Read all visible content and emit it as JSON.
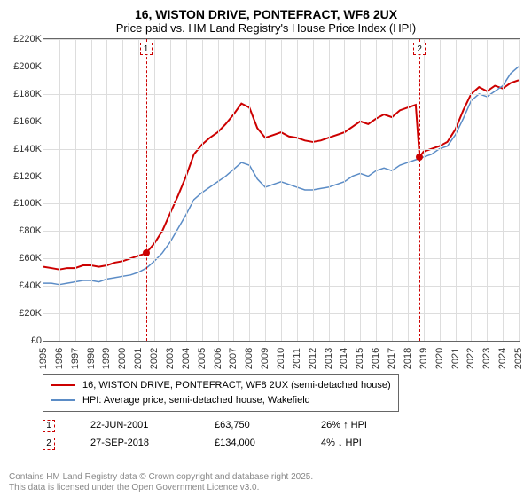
{
  "title": {
    "line1": "16, WISTON DRIVE, PONTEFRACT, WF8 2UX",
    "line2": "Price paid vs. HM Land Registry's House Price Index (HPI)"
  },
  "chart": {
    "type": "line",
    "background_color": "#ffffff",
    "grid_color": "#dddddd",
    "border_color": "#666666",
    "y_axis": {
      "min": 0,
      "max": 220000,
      "step": 20000,
      "labels": [
        "£0",
        "£20K",
        "£40K",
        "£60K",
        "£80K",
        "£100K",
        "£120K",
        "£140K",
        "£160K",
        "£180K",
        "£200K",
        "£220K"
      ],
      "label_fontsize": 11
    },
    "x_axis": {
      "min": 1995,
      "max": 2025,
      "step": 1,
      "labels": [
        "1995",
        "1996",
        "1997",
        "1998",
        "1999",
        "2000",
        "2001",
        "2002",
        "2003",
        "2004",
        "2005",
        "2006",
        "2007",
        "2008",
        "2009",
        "2010",
        "2011",
        "2012",
        "2013",
        "2014",
        "2015",
        "2016",
        "2017",
        "2018",
        "2019",
        "2020",
        "2021",
        "2022",
        "2023",
        "2024",
        "2025"
      ],
      "label_fontsize": 11
    },
    "series": [
      {
        "name": "price_paid",
        "color": "#cc0000",
        "line_width": 2,
        "x": [
          1995,
          1995.5,
          1996,
          1996.5,
          1997,
          1997.5,
          1998,
          1998.5,
          1999,
          1999.5,
          2000,
          2000.5,
          2001,
          2001.47,
          2002,
          2002.5,
          2003,
          2003.5,
          2004,
          2004.5,
          2005,
          2005.5,
          2006,
          2006.5,
          2007,
          2007.5,
          2008,
          2008.5,
          2009,
          2009.5,
          2010,
          2010.5,
          2011,
          2011.5,
          2012,
          2012.5,
          2013,
          2013.5,
          2014,
          2014.5,
          2015,
          2015.5,
          2016,
          2016.5,
          2017,
          2017.5,
          2018,
          2018.5,
          2018.74,
          2019,
          2019.5,
          2020,
          2020.5,
          2021,
          2021.5,
          2022,
          2022.5,
          2023,
          2023.5,
          2024,
          2024.5,
          2025
        ],
        "y": [
          54000,
          53000,
          52000,
          53000,
          53000,
          55000,
          55000,
          54000,
          55000,
          57000,
          58000,
          60000,
          62000,
          63750,
          71000,
          80000,
          93000,
          106000,
          120000,
          136000,
          143000,
          148000,
          152000,
          158000,
          165000,
          173000,
          170000,
          155000,
          148000,
          150000,
          152000,
          149000,
          148000,
          146000,
          145000,
          146000,
          148000,
          150000,
          152000,
          156000,
          160000,
          158000,
          162000,
          165000,
          163000,
          168000,
          170000,
          172000,
          134000,
          138000,
          140000,
          142000,
          145000,
          154000,
          168000,
          180000,
          185000,
          182000,
          186000,
          184000,
          188000,
          190000
        ]
      },
      {
        "name": "hpi",
        "color": "#5b8cc6",
        "line_width": 1.5,
        "x": [
          1995,
          1995.5,
          1996,
          1996.5,
          1997,
          1997.5,
          1998,
          1998.5,
          1999,
          1999.5,
          2000,
          2000.5,
          2001,
          2001.5,
          2002,
          2002.5,
          2003,
          2003.5,
          2004,
          2004.5,
          2005,
          2005.5,
          2006,
          2006.5,
          2007,
          2007.5,
          2008,
          2008.5,
          2009,
          2009.5,
          2010,
          2010.5,
          2011,
          2011.5,
          2012,
          2012.5,
          2013,
          2013.5,
          2014,
          2014.5,
          2015,
          2015.5,
          2016,
          2016.5,
          2017,
          2017.5,
          2018,
          2018.5,
          2019,
          2019.5,
          2020,
          2020.5,
          2021,
          2021.5,
          2022,
          2022.5,
          2023,
          2023.5,
          2024,
          2024.5,
          2025
        ],
        "y": [
          42000,
          42000,
          41000,
          42000,
          43000,
          44000,
          44000,
          43000,
          45000,
          46000,
          47000,
          48000,
          50000,
          53000,
          58000,
          64000,
          72000,
          82000,
          92000,
          103000,
          108000,
          112000,
          116000,
          120000,
          125000,
          130000,
          128000,
          118000,
          112000,
          114000,
          116000,
          114000,
          112000,
          110000,
          110000,
          111000,
          112000,
          114000,
          116000,
          120000,
          122000,
          120000,
          124000,
          126000,
          124000,
          128000,
          130000,
          132000,
          134000,
          136000,
          140000,
          142000,
          150000,
          162000,
          175000,
          180000,
          178000,
          182000,
          186000,
          195000,
          200000
        ]
      }
    ],
    "sale_markers": [
      {
        "n": 1,
        "year": 2001.47,
        "price": 63750,
        "color": "#cc0000"
      },
      {
        "n": 2,
        "year": 2018.74,
        "price": 134000,
        "color": "#cc0000"
      }
    ]
  },
  "legend": {
    "items": [
      {
        "color": "#cc0000",
        "width": 2,
        "label": "16, WISTON DRIVE, PONTEFRACT, WF8 2UX (semi-detached house)"
      },
      {
        "color": "#5b8cc6",
        "width": 1.5,
        "label": "HPI: Average price, semi-detached house, Wakefield"
      }
    ]
  },
  "marker_table": [
    {
      "n": "1",
      "date": "22-JUN-2001",
      "price": "£63,750",
      "delta": "26% ↑ HPI",
      "color": "#cc0000"
    },
    {
      "n": "2",
      "date": "27-SEP-2018",
      "price": "£134,000",
      "delta": "4% ↓ HPI",
      "color": "#cc0000"
    }
  ],
  "attribution": {
    "line1": "Contains HM Land Registry data © Crown copyright and database right 2025.",
    "line2": "This data is licensed under the Open Government Licence v3.0."
  }
}
